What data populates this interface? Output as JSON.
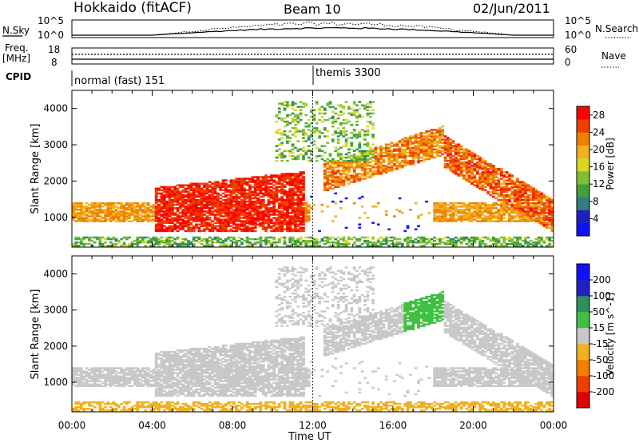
{
  "header": {
    "site": "Hokkaido (fitACF)",
    "beam": "Beam 10",
    "date": "02/Jun/2011"
  },
  "top_panels": {
    "nsky_label": "N.Sky",
    "nsky_ticks": [
      "10^5",
      "10^0"
    ],
    "nsearch_label": "N.Search",
    "nsearch_ticks": [
      "10^5",
      "10^0"
    ],
    "freq_label_1": "Freq.",
    "freq_label_2": "[MHz]",
    "freq_ticks": [
      "18",
      "8"
    ],
    "nave_label": "Nave",
    "nave_ticks": [
      "60",
      "0"
    ],
    "cpid_label": "CPID",
    "cpid_segments": [
      {
        "label": "normal (fast) 151",
        "start_hour": 0
      },
      {
        "label": "themis 3300",
        "start_hour": 12
      }
    ]
  },
  "chart_data": [
    {
      "type": "heatmap",
      "title": "",
      "xlabel": "Time UT",
      "ylabel": "Slant Range [km]",
      "xlim_hours": [
        0,
        24
      ],
      "x_ticks": [
        "00:00",
        "04:00",
        "08:00",
        "12:00",
        "16:00",
        "20:00",
        "00:00"
      ],
      "ylim": [
        180,
        4500
      ],
      "y_ticks": [
        1000,
        2000,
        3000,
        4000
      ],
      "colorbar": {
        "label": "Power [dB]",
        "ticks": [
          28,
          24,
          20,
          16,
          12,
          8,
          4
        ],
        "range": [
          0,
          30
        ],
        "colors": [
          "#1010ff",
          "#2020c0",
          "#2f7f7f",
          "#40a040",
          "#7fbf30",
          "#d8d820",
          "#f0b020",
          "#f08000",
          "#f04000",
          "#ff0000"
        ]
      },
      "features": [
        {
          "name": "near range band",
          "t_hours": [
            0,
            24
          ],
          "range_km": [
            950,
            1350
          ],
          "mean_dB": 22
        },
        {
          "name": "evening arc",
          "t_hours": [
            13,
            19
          ],
          "range_km": [
            1800,
            3000
          ],
          "mean_dB": 22
        },
        {
          "name": "night morning echoes",
          "t_hours": [
            4,
            11
          ],
          "range_km": [
            700,
            1700
          ],
          "mean_dB": 27
        }
      ]
    },
    {
      "type": "heatmap",
      "title": "",
      "xlabel": "Time UT",
      "ylabel": "Slant Range [km]",
      "xlim_hours": [
        0,
        24
      ],
      "x_ticks": [
        "00:00",
        "04:00",
        "08:00",
        "12:00",
        "16:00",
        "20:00",
        "00:00"
      ],
      "ylim": [
        180,
        4500
      ],
      "y_ticks": [
        1000,
        2000,
        3000,
        4000
      ],
      "colorbar": {
        "label": "Velocity [m s^-1]",
        "ticks": [
          200,
          100,
          50,
          15,
          -15,
          -50,
          -100,
          -200
        ],
        "range": [
          -250,
          250
        ],
        "colors": [
          "#e00000",
          "#f04000",
          "#f08000",
          "#f0b020",
          "#c8c8c8",
          "#40c040",
          "#2f8f5f",
          "#2020c0",
          "#1010ff"
        ]
      },
      "features": [
        {
          "name": "ground scatter",
          "t_hours": [
            0,
            24
          ],
          "range_km": [
            700,
            2700
          ],
          "mean_ms": 0
        },
        {
          "name": "positive velocity patch",
          "t_hours": [
            17,
            20
          ],
          "range_km": [
            1900,
            3400
          ],
          "mean_ms": 60
        },
        {
          "name": "negative near range",
          "t_hours": [
            0,
            24
          ],
          "range_km": [
            200,
            500
          ],
          "mean_ms": -40
        }
      ]
    }
  ]
}
